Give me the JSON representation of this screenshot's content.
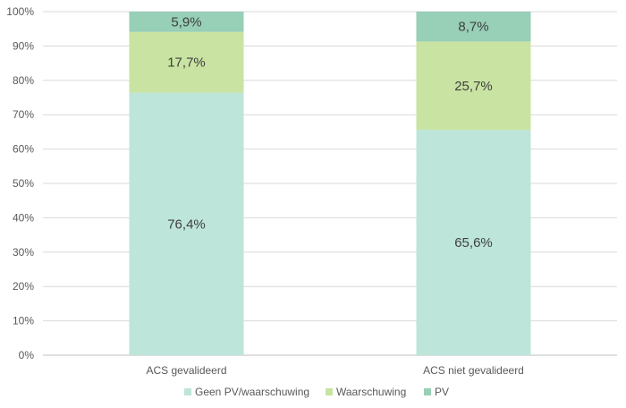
{
  "chart_data": {
    "type": "bar",
    "stacked": true,
    "percent_stacked": true,
    "categories": [
      "ACS gevalideerd",
      "ACS niet gevalideerd"
    ],
    "series": [
      {
        "name": "Geen PV/waarschuwing",
        "values": [
          76.4,
          65.6
        ],
        "labels": [
          "76,4%",
          "65,6%"
        ],
        "color": "#bde5da"
      },
      {
        "name": "Waarschuwing",
        "values": [
          17.7,
          25.7
        ],
        "labels": [
          "17,7%",
          "25,7%"
        ],
        "color": "#c9e3a2"
      },
      {
        "name": "PV",
        "values": [
          5.9,
          8.7
        ],
        "labels": [
          "5,9%",
          "8,7%"
        ],
        "color": "#97cfb7"
      }
    ],
    "ylim": [
      0,
      100
    ],
    "yticks": [
      "0%",
      "10%",
      "20%",
      "30%",
      "40%",
      "50%",
      "60%",
      "70%",
      "80%",
      "90%",
      "100%"
    ],
    "grid": true,
    "legend_position": "bottom"
  }
}
